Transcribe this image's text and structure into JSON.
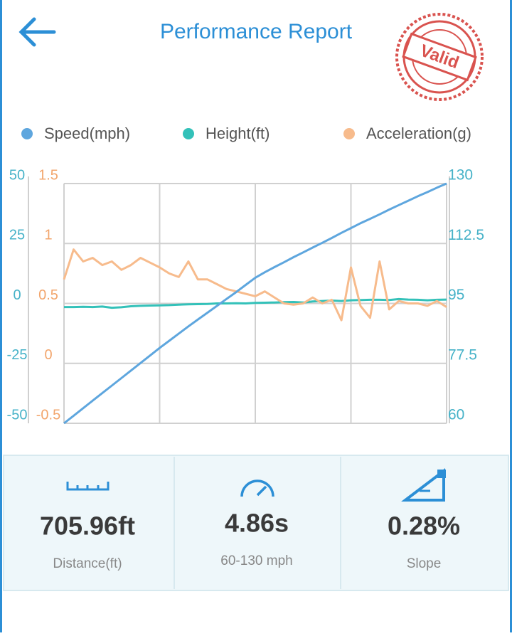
{
  "header": {
    "title": "Performance Report",
    "stamp": "Valid"
  },
  "chart_data": {
    "type": "line",
    "categories": [
      null,
      null,
      null,
      null,
      null,
      null,
      null,
      null,
      null,
      null,
      null,
      null,
      null,
      null,
      null,
      null,
      null,
      null,
      null,
      null,
      null,
      null,
      null,
      null,
      null,
      null,
      null,
      null,
      null,
      null,
      null,
      null,
      null,
      null,
      null,
      null,
      null,
      null,
      null,
      null,
      null
    ],
    "series": [
      {
        "name": "Speed(mph)",
        "color": "#5ea6de",
        "axis": "y2",
        "values": [
          60,
          62.2,
          64.4,
          66.6,
          68.8,
          71,
          73.2,
          75.4,
          77.6,
          79.8,
          82,
          84.1,
          86.2,
          88.3,
          90.3,
          92.3,
          94.3,
          96.3,
          98.3,
          100.4,
          102.5,
          104.1,
          105.6,
          107,
          108.5,
          109.9,
          111.3,
          112.7,
          114.1,
          115.6,
          117,
          118.4,
          119.7,
          121,
          122.4,
          123.7,
          125,
          126.3,
          127.5,
          128.8,
          130
        ]
      },
      {
        "name": "Height(ft)",
        "color": "#33c1b9",
        "axis": "y",
        "values": [
          -1.5,
          -1.5,
          -1.4,
          -1.5,
          -1.3,
          -1.8,
          -1.6,
          -1.2,
          -1.0,
          -0.9,
          -0.8,
          -0.7,
          -0.5,
          -0.4,
          -0.3,
          -0.2,
          0,
          0,
          0.1,
          0,
          0.2,
          0.3,
          0.4,
          0.5,
          0.6,
          0.4,
          0.8,
          1.0,
          1.2,
          1.0,
          1.3,
          1.4,
          1.5,
          1.5,
          1.4,
          1.8,
          1.6,
          1.5,
          1.3,
          1.5,
          1.6
        ]
      },
      {
        "name": "Acceleration(g)",
        "color": "#f7bb8c",
        "axis": "y3",
        "values": [
          0.7,
          0.95,
          0.85,
          0.88,
          0.82,
          0.85,
          0.78,
          0.82,
          0.88,
          0.84,
          0.8,
          0.75,
          0.72,
          0.85,
          0.7,
          0.7,
          0.66,
          0.62,
          0.6,
          0.58,
          0.56,
          0.6,
          0.55,
          0.5,
          0.49,
          0.5,
          0.55,
          0.5,
          0.53,
          0.36,
          0.8,
          0.48,
          0.38,
          0.85,
          0.45,
          0.52,
          0.5,
          0.5,
          0.48,
          0.52,
          0.47
        ]
      }
    ],
    "ylim": [
      -50,
      50
    ],
    "yticks": [
      -50,
      -25,
      0,
      25,
      50
    ],
    "y3lim": [
      -0.5,
      1.5
    ],
    "y3ticks": [
      -0.5,
      0,
      0.5,
      1,
      1.5
    ],
    "y2lim": [
      60,
      130
    ],
    "y2ticks": [
      60,
      77.5,
      95,
      112.5,
      130
    ],
    "grid": true
  },
  "stats": [
    {
      "value": "705.96ft",
      "label": "Distance(ft)"
    },
    {
      "value": "4.86s",
      "label": "60-130 mph"
    },
    {
      "value": "0.28%",
      "label": "Slope"
    }
  ]
}
